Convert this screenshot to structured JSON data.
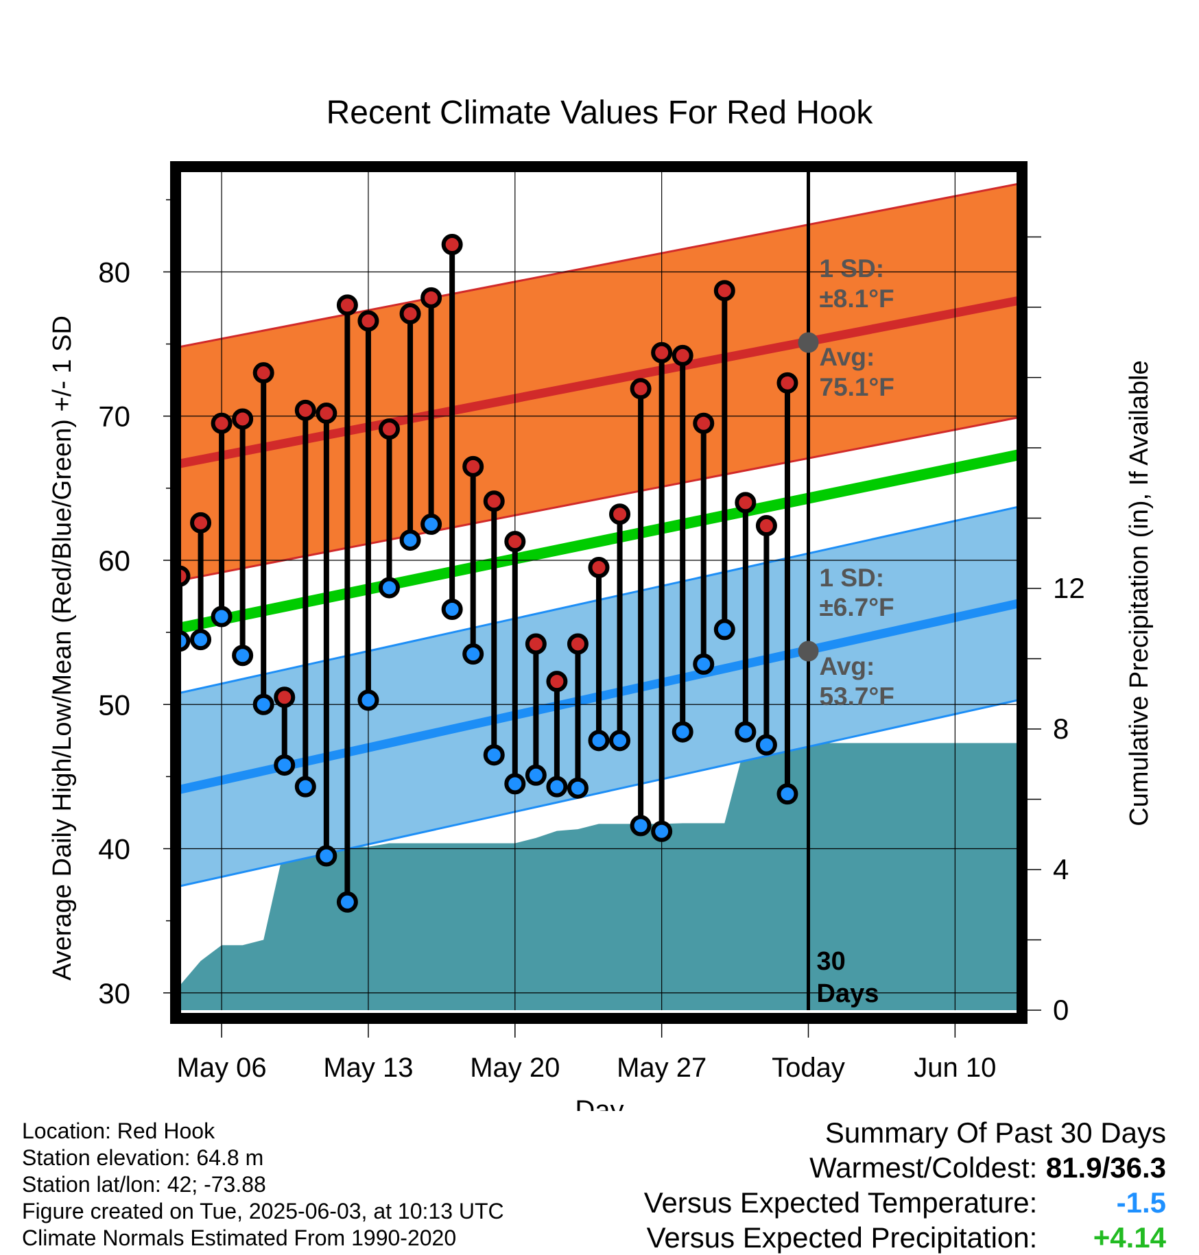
{
  "chart_data": {
    "type": "line",
    "title": "Recent Climate Values For Red Hook",
    "xlabel": "Day",
    "ylabel_left": "Average Daily High/Low/Mean (Red/Blue/Green) +/- 1 SD",
    "ylabel_right": "Cumulative Precipitation (in), If Available",
    "x_tick_labels": [
      "May 06",
      "May 13",
      "May 20",
      "May 27",
      "Today",
      "Jun 10"
    ],
    "y_left_ticks": [
      "30",
      "40",
      "50",
      "60",
      "70",
      "80"
    ],
    "y_right_ticks": [
      "0",
      "4",
      "8",
      "12"
    ],
    "ylim_left": [
      28.8,
      87.3
    ],
    "ylim_right": [
      0,
      24
    ],
    "x_range_days": [
      "2025-05-04",
      "2025-06-13"
    ],
    "grid": true,
    "normals": {
      "high": {
        "start": 66.7,
        "end": 78.0,
        "sd": 8.1
      },
      "mean": {
        "start": 55.3,
        "end": 67.3
      },
      "low": {
        "start": 44.1,
        "end": 57.0,
        "sd": 6.7
      }
    },
    "series": [
      {
        "name": "High",
        "x": [
          "2025-05-04",
          "2025-05-05",
          "2025-05-06",
          "2025-05-07",
          "2025-05-08",
          "2025-05-09",
          "2025-05-10",
          "2025-05-11",
          "2025-05-12",
          "2025-05-13",
          "2025-05-14",
          "2025-05-15",
          "2025-05-16",
          "2025-05-17",
          "2025-05-18",
          "2025-05-19",
          "2025-05-20",
          "2025-05-21",
          "2025-05-22",
          "2025-05-23",
          "2025-05-24",
          "2025-05-25",
          "2025-05-26",
          "2025-05-27",
          "2025-05-28",
          "2025-05-29",
          "2025-05-30",
          "2025-05-31",
          "2025-06-01",
          "2025-06-02"
        ],
        "values": [
          58.9,
          62.6,
          69.5,
          69.8,
          73.0,
          50.5,
          70.4,
          70.2,
          77.7,
          76.6,
          69.1,
          77.1,
          78.2,
          81.9,
          66.5,
          64.1,
          61.3,
          54.2,
          51.6,
          54.2,
          59.5,
          63.2,
          71.9,
          74.4,
          74.2,
          69.5,
          78.7,
          64.0,
          62.4,
          72.3
        ]
      },
      {
        "name": "Low",
        "x": [
          "2025-05-04",
          "2025-05-05",
          "2025-05-06",
          "2025-05-07",
          "2025-05-08",
          "2025-05-09",
          "2025-05-10",
          "2025-05-11",
          "2025-05-12",
          "2025-05-13",
          "2025-05-14",
          "2025-05-15",
          "2025-05-16",
          "2025-05-17",
          "2025-05-18",
          "2025-05-19",
          "2025-05-20",
          "2025-05-21",
          "2025-05-22",
          "2025-05-23",
          "2025-05-24",
          "2025-05-25",
          "2025-05-26",
          "2025-05-27",
          "2025-05-28",
          "2025-05-29",
          "2025-05-30",
          "2025-05-31",
          "2025-06-01",
          "2025-06-02"
        ],
        "values": [
          54.4,
          54.5,
          56.1,
          53.4,
          50.0,
          45.8,
          44.3,
          39.5,
          36.3,
          50.3,
          58.1,
          61.4,
          62.5,
          56.6,
          53.5,
          46.5,
          44.5,
          45.1,
          44.3,
          44.2,
          47.5,
          47.5,
          41.6,
          41.2,
          48.1,
          52.8,
          55.2,
          48.1,
          47.2,
          43.8
        ]
      },
      {
        "name": "Cumulative Precipitation",
        "axis": "right",
        "x": [
          "2025-05-03",
          "2025-05-04",
          "2025-05-05",
          "2025-05-06",
          "2025-05-07",
          "2025-05-08",
          "2025-05-09",
          "2025-05-10",
          "2025-05-11",
          "2025-05-12",
          "2025-05-13",
          "2025-05-14",
          "2025-05-15",
          "2025-05-16",
          "2025-05-17",
          "2025-05-18",
          "2025-05-19",
          "2025-05-20",
          "2025-05-21",
          "2025-05-22",
          "2025-05-23",
          "2025-05-24",
          "2025-05-25",
          "2025-05-26",
          "2025-05-27",
          "2025-05-28",
          "2025-05-29",
          "2025-05-30",
          "2025-05-31",
          "2025-06-13"
        ],
        "values": [
          0.0,
          0.7,
          1.4,
          1.85,
          1.85,
          2.0,
          4.65,
          4.65,
          4.65,
          4.65,
          4.65,
          4.75,
          4.75,
          4.75,
          4.75,
          4.75,
          4.75,
          4.75,
          4.9,
          5.1,
          5.15,
          5.3,
          5.3,
          5.3,
          5.3,
          5.32,
          5.32,
          5.32,
          7.6,
          7.6
        ]
      }
    ],
    "annotations": {
      "high_sd_label": "1 SD:",
      "high_sd_value": "±8.1°F",
      "high_avg_label": "Avg:",
      "high_avg_value": "75.1°F",
      "high_avg": 75.1,
      "low_sd_label": "1 SD:",
      "low_sd_value": "±6.7°F",
      "low_avg_label": "Avg:",
      "low_avg_value": "53.7°F",
      "low_avg": 53.7,
      "window_label_line1": "30",
      "window_label_line2": "Days",
      "today": "2025-06-02"
    }
  },
  "colors": {
    "high_band": "#f47a30",
    "high_line": "#d12a2a",
    "low_band": "#85c2e9",
    "low_line": "#1d8ef6",
    "mean_line": "#00cc00",
    "precip": "#4a9aa5",
    "high_dot": "#d02b2b",
    "low_dot": "#1e90ff",
    "annotation_text": "#555555"
  },
  "info": {
    "location": "Location: Red Hook",
    "elevation": "Station elevation: 64.8 m",
    "latlon": "Station lat/lon: 42; -73.88",
    "created": "Figure created on Tue, 2025-06-03, at 10:13 UTC",
    "normals": "Climate Normals Estimated From 1990-2020"
  },
  "summary": {
    "title": "Summary Of Past 30 Days",
    "warmest_label": "Warmest/Coldest:",
    "warmest_value": "81.9/36.3",
    "temp_label": "Versus Expected Temperature:",
    "temp_value": "-1.5",
    "precip_label": "Versus Expected Precipitation:",
    "precip_value": "+4.14",
    "temp_color": "#1e90ff",
    "precip_color": "#22bb22"
  }
}
